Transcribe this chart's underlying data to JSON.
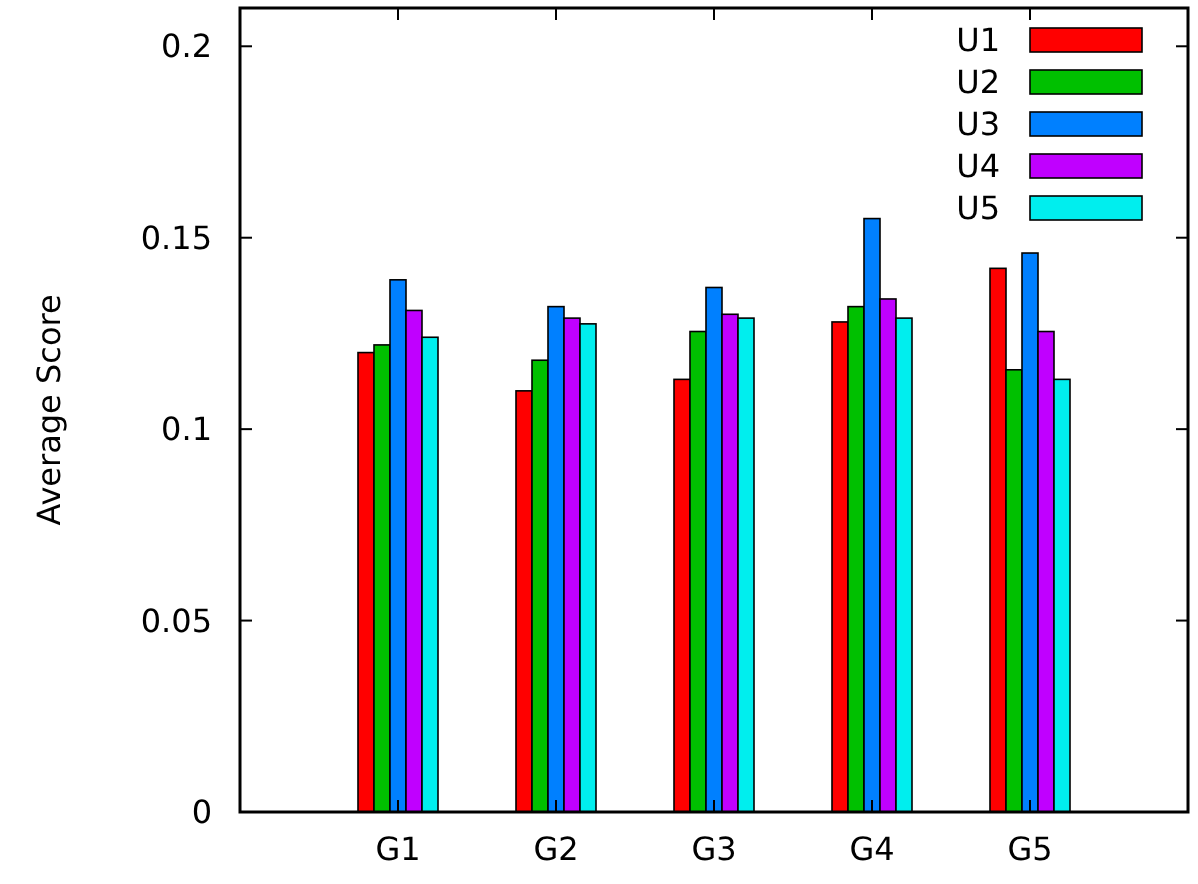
{
  "chart_data": {
    "type": "bar",
    "ylabel": "Average Score",
    "categories": [
      "G1",
      "G2",
      "G3",
      "G4",
      "G5"
    ],
    "series": [
      {
        "name": "U1",
        "color": "#ff0000",
        "values": [
          0.12,
          0.11,
          0.113,
          0.128,
          0.142
        ]
      },
      {
        "name": "U2",
        "color": "#00c000",
        "values": [
          0.122,
          0.118,
          0.1255,
          0.132,
          0.1155
        ]
      },
      {
        "name": "U3",
        "color": "#0080ff",
        "values": [
          0.139,
          0.132,
          0.137,
          0.155,
          0.146
        ]
      },
      {
        "name": "U4",
        "color": "#c000ff",
        "values": [
          0.131,
          0.129,
          0.13,
          0.134,
          0.1255
        ]
      },
      {
        "name": "U5",
        "color": "#00eeee",
        "values": [
          0.124,
          0.1275,
          0.129,
          0.129,
          0.113
        ]
      }
    ],
    "ylim": [
      0,
      0.21
    ],
    "yticks": [
      0,
      0.05,
      0.1,
      0.15,
      0.2
    ],
    "grid": false,
    "legend": "top right"
  }
}
